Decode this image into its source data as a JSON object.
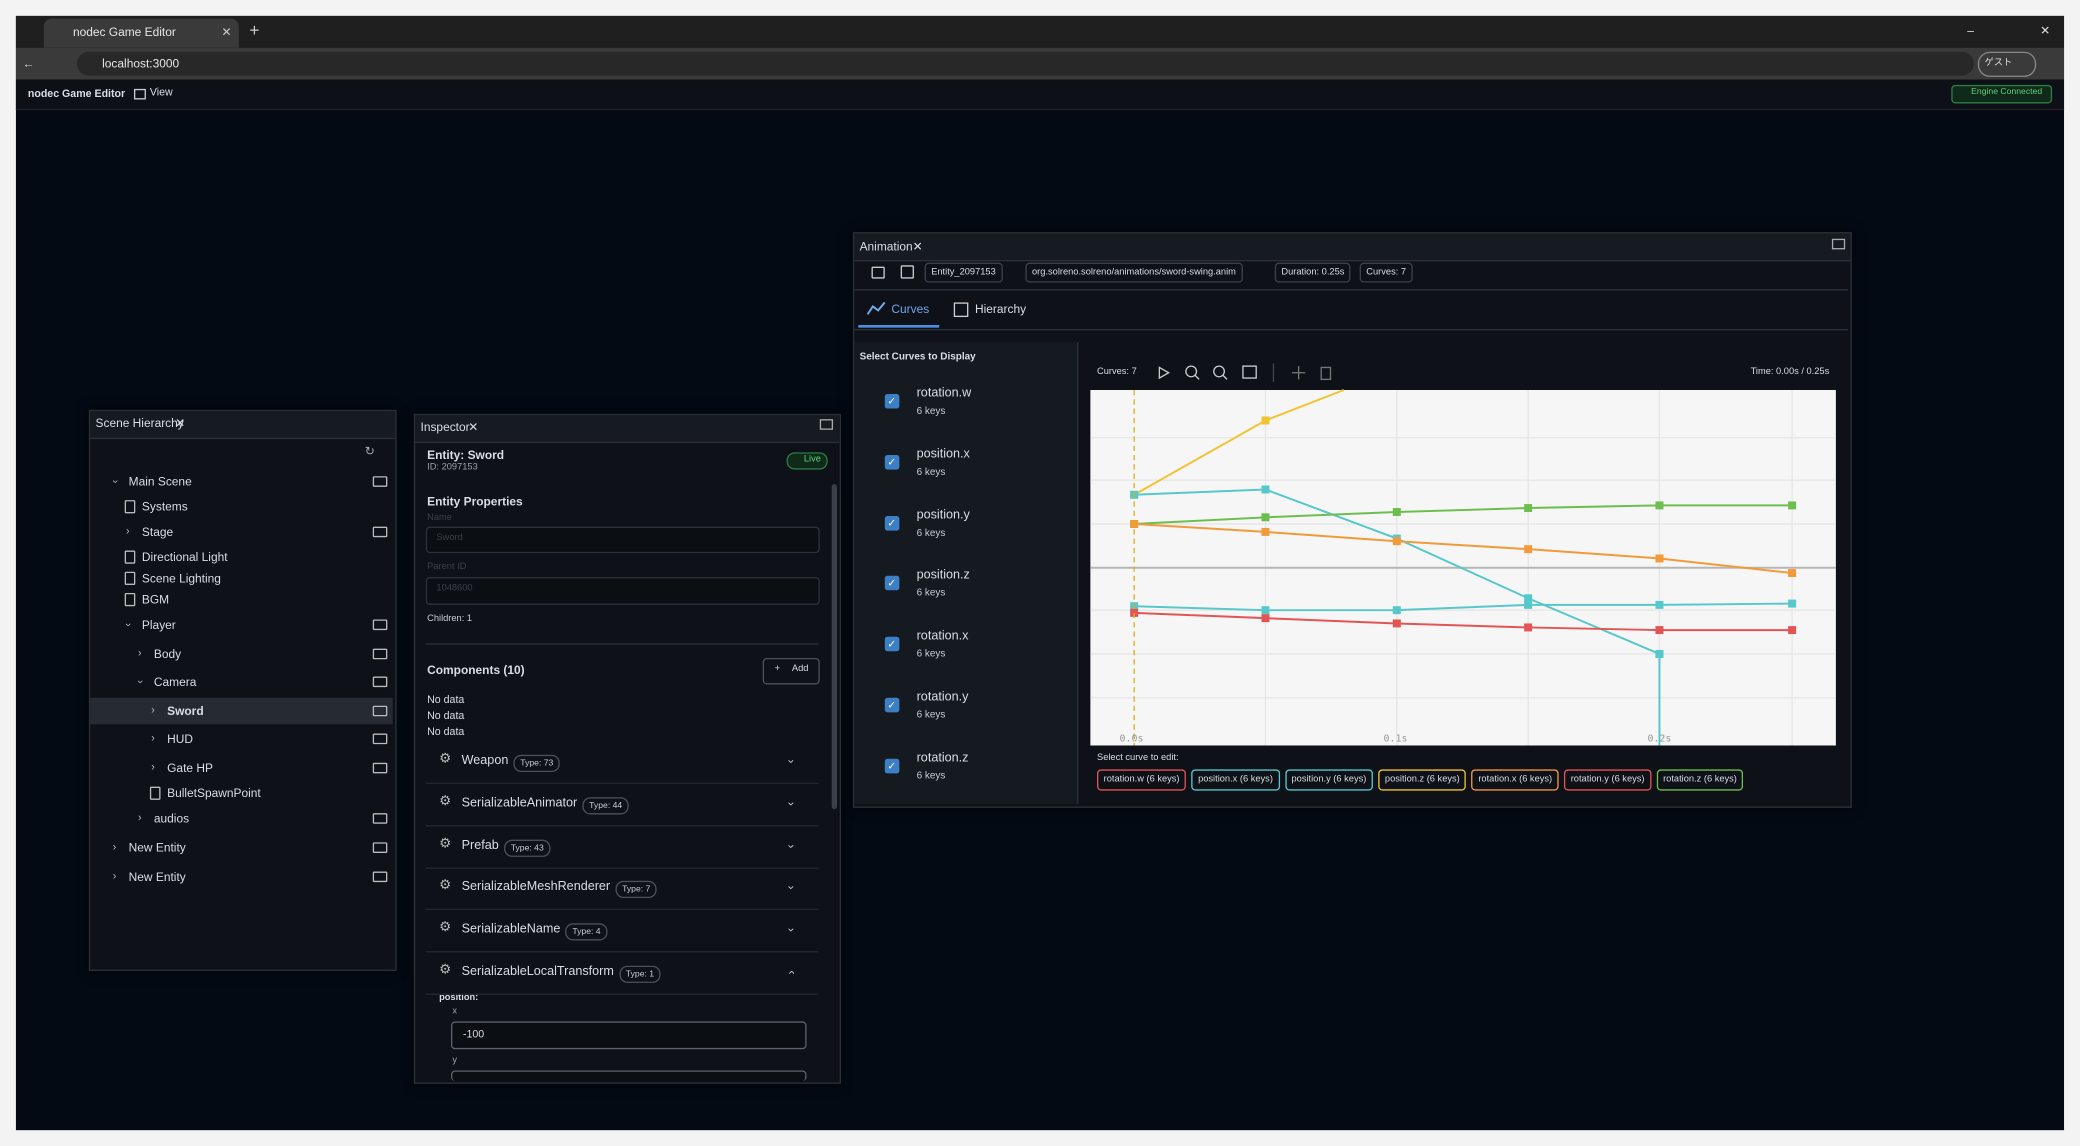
{
  "browser": {
    "tab_title": "nodec Game Editor",
    "url": "localhost:3000",
    "guest": "ゲスト"
  },
  "menu": {
    "app_name": "nodec Game Editor",
    "view": "View",
    "status": "Engine Connected"
  },
  "hierarchy": {
    "title": "Scene Hierarchy",
    "items": [
      "Main Scene",
      "Systems",
      "Stage",
      "Directional Light",
      "Scene Lighting",
      "BGM",
      "Player",
      "Body",
      "Camera",
      "Sword",
      "HUD",
      "Gate HP",
      "BulletSpawnPoint",
      "audios",
      "New Entity",
      "New Entity"
    ]
  },
  "inspector": {
    "title": "Inspector",
    "entity": "Entity: Sword",
    "id": "ID: 2097153",
    "live": "Live",
    "section": "Entity Properties",
    "name_label": "Name",
    "name_value": "Sword",
    "parent_label": "Parent ID",
    "parent_value": "1048600",
    "children": "Children: 1",
    "components_title": "Components (10)",
    "add": "Add",
    "no_data": [
      "No data",
      "No data",
      "No data"
    ],
    "components": [
      {
        "name": "Weapon",
        "type": "Type: 73"
      },
      {
        "name": "SerializableAnimator",
        "type": "Type: 44"
      },
      {
        "name": "Prefab",
        "type": "Type: 43"
      },
      {
        "name": "SerializableMeshRenderer",
        "type": "Type: 7"
      },
      {
        "name": "SerializableName",
        "type": "Type: 4"
      },
      {
        "name": "SerializableLocalTransform",
        "type": "Type: 1"
      }
    ],
    "position_label": "position:",
    "x_label": "x",
    "x_value": "-100",
    "y_label": "y"
  },
  "animation": {
    "title": "Animation",
    "entity": "Entity_2097153",
    "path": "org.solreno.solreno/animations/sword-swing.anim",
    "duration": "Duration: 0.25s",
    "curves_count": "Curves: 7",
    "tab_curves": "Curves",
    "tab_hierarchy": "Hierarchy",
    "select_title": "Select Curves to Display",
    "curves": [
      {
        "name": "rotation.w",
        "keys": "6 keys"
      },
      {
        "name": "position.x",
        "keys": "6 keys"
      },
      {
        "name": "position.y",
        "keys": "6 keys"
      },
      {
        "name": "position.z",
        "keys": "6 keys"
      },
      {
        "name": "rotation.x",
        "keys": "6 keys"
      },
      {
        "name": "rotation.y",
        "keys": "6 keys"
      },
      {
        "name": "rotation.z",
        "keys": "6 keys"
      }
    ],
    "toolbar_curves": "Curves: 7",
    "time": "Time: 0.00s / 0.25s",
    "time_labels": [
      "0.0s",
      "0.1s",
      "0.2s"
    ],
    "edit_title": "Select curve to edit:",
    "edit_chips": [
      "rotation.w (6 keys)",
      "position.x (6 keys)",
      "position.y (6 keys)",
      "position.z (6 keys)",
      "rotation.x (6 keys)",
      "rotation.y (6 keys)",
      "rotation.z (6 keys)"
    ]
  }
}
